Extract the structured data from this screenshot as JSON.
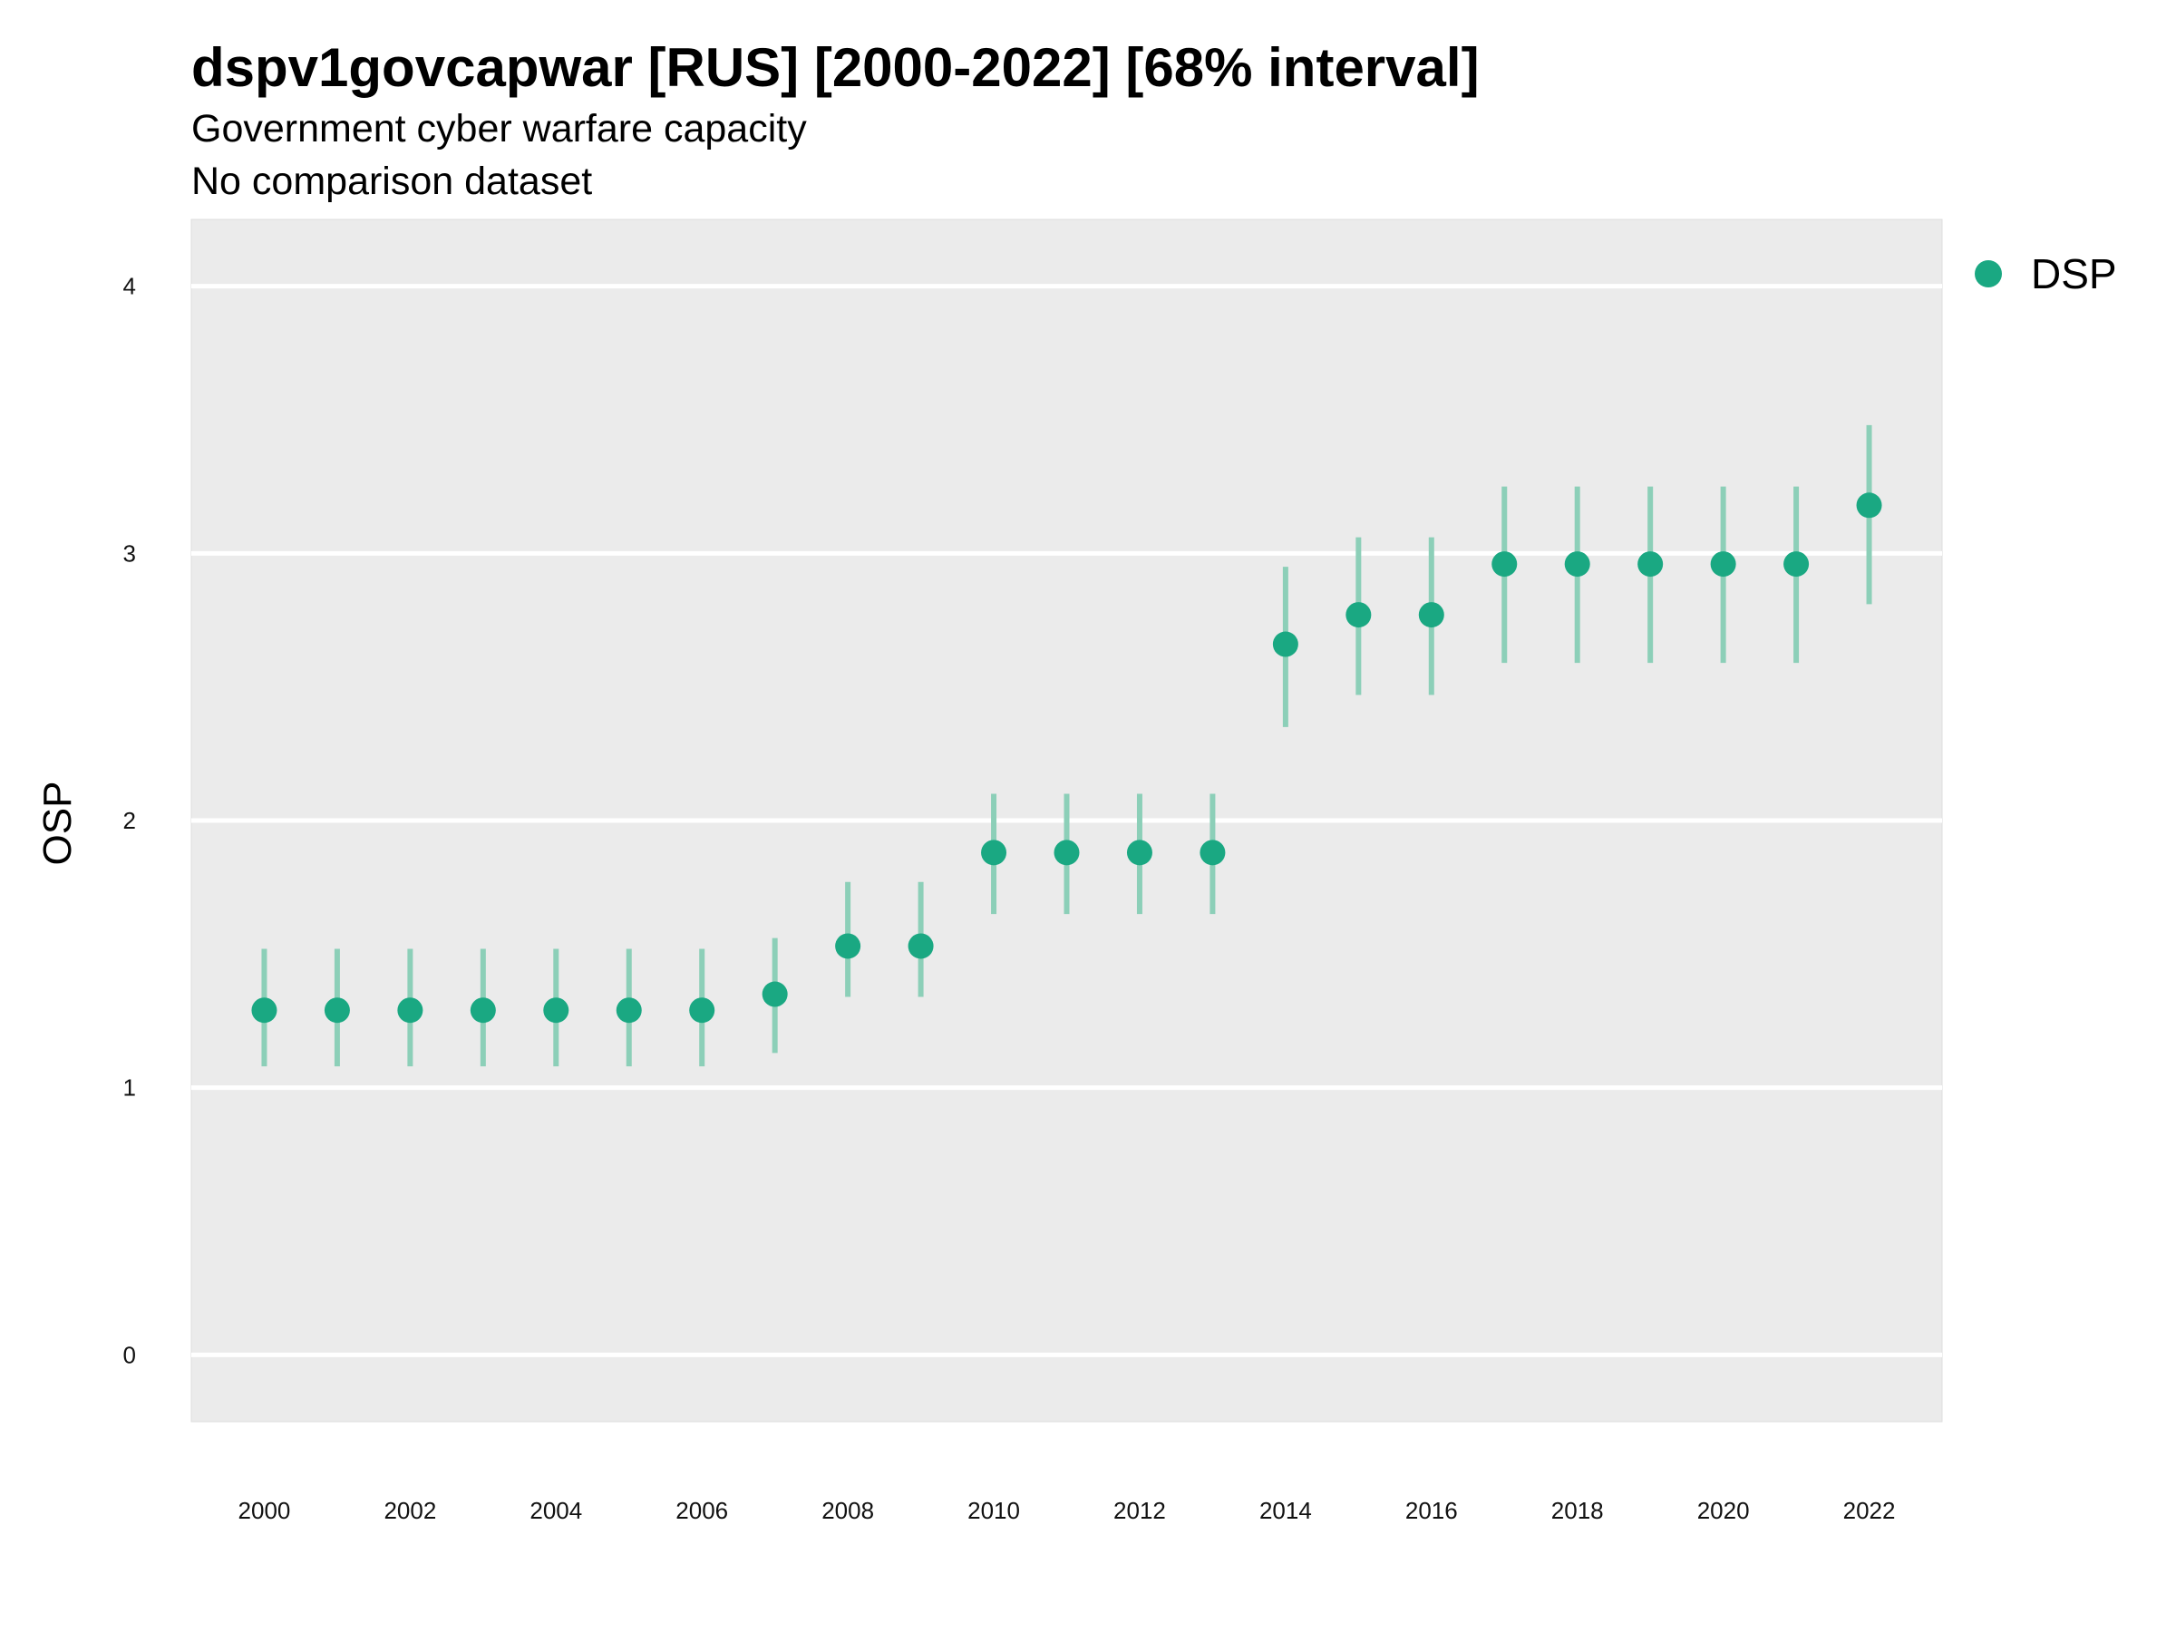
{
  "chart_data": {
    "type": "scatter",
    "title": "dspv1govcapwar [RUS] [2000-2022] [68% interval]",
    "subtitle": "Government cyber warfare capacity",
    "caption": "No comparison dataset",
    "xlabel": "",
    "ylabel": "OSP",
    "xlim": [
      1999,
      2023
    ],
    "ylim": [
      -0.25,
      4.25
    ],
    "x_ticks": [
      "2000",
      "2002",
      "2004",
      "2006",
      "2008",
      "2010",
      "2012",
      "2014",
      "2016",
      "2018",
      "2020",
      "2022"
    ],
    "y_ticks": [
      "0",
      "1",
      "2",
      "3",
      "4"
    ],
    "grid": true,
    "legend_position": "top-right",
    "colors": {
      "point": "#1aa882",
      "interval": "#8ccfb8",
      "panel": "#ebebeb",
      "grid": "#ffffff"
    },
    "series": [
      {
        "name": "DSP",
        "x": [
          2000,
          2001,
          2002,
          2003,
          2004,
          2005,
          2006,
          2007,
          2008,
          2009,
          2010,
          2011,
          2012,
          2013,
          2014,
          2015,
          2016,
          2017,
          2018,
          2019,
          2020,
          2021,
          2022
        ],
        "y": [
          1.29,
          1.29,
          1.29,
          1.29,
          1.29,
          1.29,
          1.29,
          1.35,
          1.53,
          1.53,
          1.88,
          1.88,
          1.88,
          1.88,
          2.66,
          2.77,
          2.77,
          2.96,
          2.96,
          2.96,
          2.96,
          2.96,
          3.18
        ],
        "lower": [
          1.08,
          1.08,
          1.08,
          1.08,
          1.08,
          1.08,
          1.08,
          1.13,
          1.34,
          1.34,
          1.65,
          1.65,
          1.65,
          1.65,
          2.35,
          2.47,
          2.47,
          2.59,
          2.59,
          2.59,
          2.59,
          2.59,
          2.81
        ],
        "upper": [
          1.52,
          1.52,
          1.52,
          1.52,
          1.52,
          1.52,
          1.52,
          1.56,
          1.77,
          1.77,
          2.1,
          2.1,
          2.1,
          2.1,
          2.95,
          3.06,
          3.06,
          3.25,
          3.25,
          3.25,
          3.25,
          3.25,
          3.48
        ]
      }
    ]
  }
}
